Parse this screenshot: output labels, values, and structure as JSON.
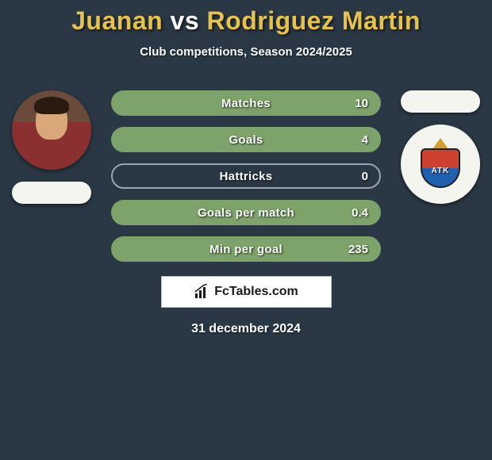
{
  "title_parts": {
    "left": "Juanan",
    "vs": " vs ",
    "right": "Rodriguez Martin"
  },
  "title_colors": {
    "left": "#e6c24a",
    "vs": "#ffffff",
    "right": "#e6c24a"
  },
  "subtitle": "Club competitions, Season 2024/2025",
  "background_color": "#2a3845",
  "bar_style": {
    "height": 32,
    "border_radius": 16,
    "border_width": 2,
    "font_size": 15,
    "font_weight": 800,
    "text_color": "#ffffff",
    "gap": 14
  },
  "player1": {
    "name": "Juanan",
    "club_name": "",
    "avatar_kind": "photo",
    "avatar_colors": {
      "bg_top": "#6a4a3a",
      "shirt": "#8a3030",
      "skin": "#d9a87a",
      "hair": "#2a1a10"
    }
  },
  "player2": {
    "name": "Rodriguez Martin",
    "club_name": "ATK",
    "club_badge_text": "ATK",
    "club_colors": {
      "top": "#d04030",
      "bottom": "#2060b0",
      "wing": "#d4a030",
      "outline": "#202020"
    },
    "avatar_kind": "placeholder",
    "avatar_colors": {
      "bg": "#3a4856"
    }
  },
  "stats": [
    {
      "label": "Matches",
      "p1_value": "",
      "p2_value": "10",
      "p1_pct": 0,
      "p2_pct": 100,
      "border_color": "#7da36a",
      "fill_left_color": "#7da36a",
      "bg_color": "#7da36a"
    },
    {
      "label": "Goals",
      "p1_value": "",
      "p2_value": "4",
      "p1_pct": 0,
      "p2_pct": 100,
      "border_color": "#7da36a",
      "fill_left_color": "#7da36a",
      "bg_color": "#7da36a"
    },
    {
      "label": "Hattricks",
      "p1_value": "",
      "p2_value": "0",
      "p1_pct": 0,
      "p2_pct": 0,
      "border_color": "#9aa5af",
      "fill_left_color": "#9aa5af",
      "bg_color": "transparent"
    },
    {
      "label": "Goals per match",
      "p1_value": "",
      "p2_value": "0.4",
      "p1_pct": 0,
      "p2_pct": 100,
      "border_color": "#7da36a",
      "fill_left_color": "#7da36a",
      "bg_color": "#7da36a"
    },
    {
      "label": "Min per goal",
      "p1_value": "",
      "p2_value": "235",
      "p1_pct": 0,
      "p2_pct": 100,
      "border_color": "#7da36a",
      "fill_left_color": "#7da36a",
      "bg_color": "#7da36a"
    }
  ],
  "footer": {
    "site_name": "FcTables.com",
    "date": "31 december 2024",
    "plate_bg": "#ffffff",
    "plate_border": "#c0c0c0",
    "icon_color": "#1a1a1a"
  }
}
